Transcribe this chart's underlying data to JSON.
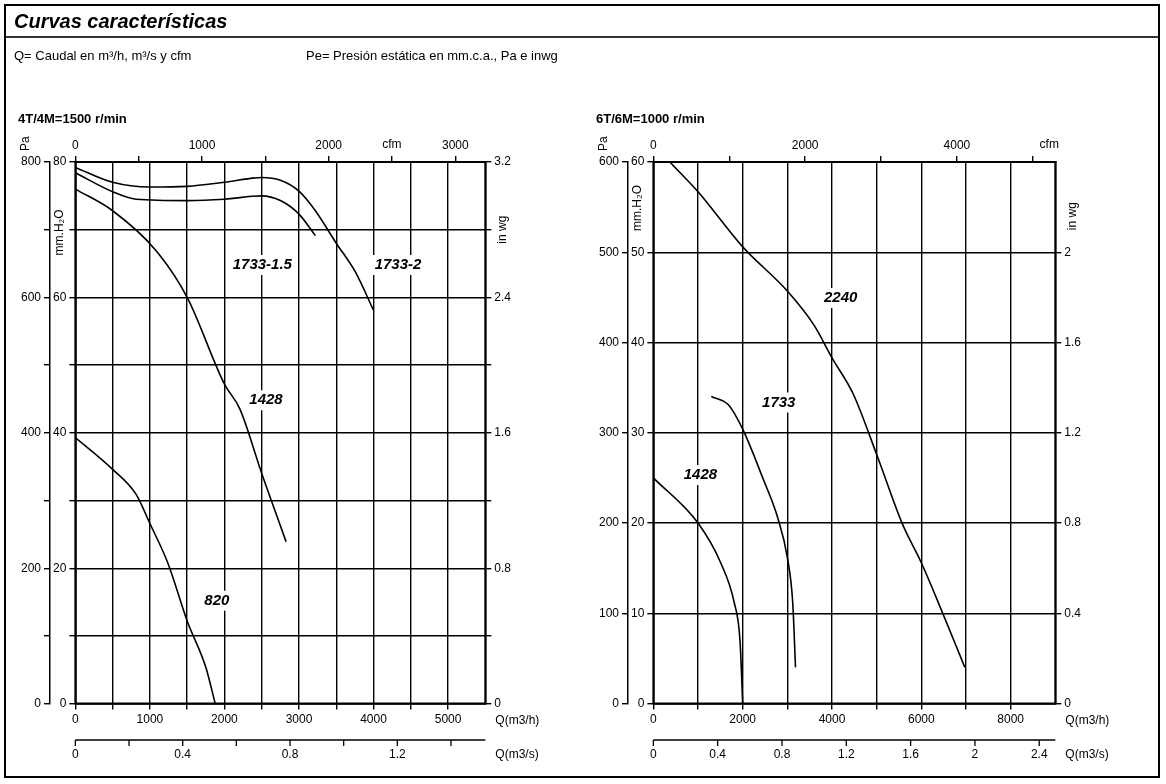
{
  "chart_data": [
    {
      "type": "other",
      "title": "Curvas características",
      "annotations": [
        "Q= Caudal en m³/h, m³/s y cfm",
        "Pe= Presión estática en mm.c.a., Pa e inwg"
      ]
    },
    {
      "type": "line",
      "title": "4T/4M=1500 r/min",
      "xlabel": "Q(m3/h)",
      "x2label": "cfm",
      "ylabel": "mm.H₂O",
      "y2label": "Pa",
      "y3label": "in wg",
      "annotations": [
        "0",
        "0.4",
        "0.8",
        "1.2",
        "Q(m3/s)"
      ],
      "xlim": [
        0,
        5500
      ],
      "xticks": [
        0,
        {
          "value": 500,
          "label": null
        },
        1000,
        {
          "value": 1500,
          "label": null
        },
        2000,
        {
          "value": 2500,
          "label": null
        },
        3000,
        {
          "value": 3500,
          "label": null
        },
        4000,
        {
          "value": 4500,
          "label": null
        },
        5000
      ],
      "x2lim": [
        0,
        3237
      ],
      "x2ticks": [
        0,
        {
          "value": 500,
          "label": null
        },
        1000,
        {
          "value": 1500,
          "label": null
        },
        2000,
        {
          "value": 2500,
          "label": null
        },
        3000
      ],
      "ylim": [
        0,
        80
      ],
      "yticks": [
        0,
        {
          "value": 10,
          "label": null
        },
        20,
        {
          "value": 30,
          "label": null
        },
        40,
        {
          "value": 50,
          "label": null
        },
        60,
        {
          "value": 70,
          "label": null
        },
        80
      ],
      "y2lim": [
        0,
        800
      ],
      "y2ticks": [
        0,
        {
          "value": 100,
          "label": null
        },
        200,
        {
          "value": 300,
          "label": null
        },
        400,
        {
          "value": 500,
          "label": null
        },
        600,
        {
          "value": 700,
          "label": null
        },
        800
      ],
      "y3lim": [
        0,
        3.2
      ],
      "y3ticks": [
        0,
        {
          "value": 0.4,
          "label": null
        },
        0.8,
        {
          "value": 1.2,
          "label": null
        },
        1.6,
        {
          "value": 2,
          "label": null
        },
        2.4,
        {
          "value": 2.8,
          "label": null
        },
        3.2
      ],
      "grid": true,
      "marker": "none",
      "line_style": "solid",
      "series": [
        {
          "name": "1733-2",
          "color": "#000000",
          "x": [
            0,
            500,
            1000,
            1500,
            2000,
            2500,
            2750,
            3000,
            3220,
            3500,
            3760,
            4000
          ],
          "values": [
            79.2,
            77.0,
            76.3,
            76.4,
            77.0,
            77.7,
            77.3,
            75.7,
            72.8,
            68.0,
            63.7,
            58.1
          ]
        },
        {
          "name": "1733-1.5",
          "color": "#000000",
          "x": [
            0,
            500,
            815,
            1500,
            2000,
            2500,
            2750,
            3000,
            3215
          ],
          "values": [
            78.4,
            75.6,
            74.5,
            74.3,
            74.5,
            75.0,
            74.3,
            72.3,
            69.2
          ]
        },
        {
          "name": "1428",
          "color": "#000000",
          "x": [
            0,
            500,
            1083,
            1500,
            2000,
            2208,
            2500,
            2600,
            2824
          ],
          "values": [
            76.0,
            72.8,
            66.9,
            60.0,
            47.2,
            43.5,
            34.0,
            30.9,
            24.0
          ]
        },
        {
          "name": "820",
          "color": "#000000",
          "x": [
            0,
            500,
            815,
            1000,
            1243,
            1500,
            1752,
            1876
          ],
          "values": [
            39.3,
            34.6,
            30.9,
            26.6,
            20.7,
            12.2,
            5.3,
            0
          ]
        }
      ]
    },
    {
      "type": "line",
      "title": "6T/6M=1000 r/min",
      "xlabel": "Q(m3/h)",
      "x2label": "cfm",
      "ylabel": "mm.H₂O",
      "y2label": "Pa",
      "y3label": "in wg",
      "annotations": [
        "0",
        "0.4",
        "0.8",
        "1.2",
        "1.6",
        "2",
        "2.4",
        "Q(m3/s)"
      ],
      "xlim": [
        0,
        9000
      ],
      "xticks": [
        0,
        {
          "value": 1000,
          "label": null
        },
        2000,
        {
          "value": 3000,
          "label": null
        },
        4000,
        {
          "value": 5000,
          "label": null
        },
        6000,
        {
          "value": 7000,
          "label": null
        },
        8000
      ],
      "x2lim": [
        0,
        5297
      ],
      "x2ticks": [
        0,
        {
          "value": 1000,
          "label": null
        },
        2000,
        {
          "value": 3000,
          "label": null
        },
        4000,
        {
          "value": 5000,
          "label": null
        }
      ],
      "ylim": [
        0,
        60
      ],
      "yticks": [
        0,
        10,
        20,
        30,
        40,
        50,
        60
      ],
      "y2lim": [
        0,
        600
      ],
      "y2ticks": [
        0,
        100,
        200,
        300,
        400,
        500,
        600
      ],
      "y3lim": [
        0,
        2.4
      ],
      "y3ticks": [
        0,
        0.4,
        0.8,
        1.2,
        1.6,
        2
      ],
      "grid": true,
      "marker": "none",
      "line_style": "solid",
      "series": [
        {
          "name": "2240",
          "color": "#000000",
          "x": [
            367,
            1000,
            2000,
            3000,
            3600,
            4000,
            4475,
            5000,
            5568,
            6000,
            6480,
            6967
          ],
          "values": [
            60.0,
            56.7,
            50.6,
            45.7,
            41.9,
            38.3,
            34.3,
            27.6,
            20.0,
            15.6,
            10.0,
            4.1
          ]
        },
        {
          "name": "1733",
          "color": "#000000",
          "x": [
            1311,
            1680,
            2000,
            2465,
            2771,
            3007,
            3120,
            3182
          ],
          "values": [
            34.0,
            33.1,
            30.4,
            24.8,
            20.8,
            16.0,
            11.2,
            4.1
          ]
        },
        {
          "name": "1428",
          "color": "#000000",
          "x": [
            0,
            1000,
            1507,
            1810,
            1941,
            2000
          ],
          "values": [
            25.0,
            20.0,
            15.6,
            11.2,
            6.9,
            0
          ]
        }
      ]
    }
  ]
}
